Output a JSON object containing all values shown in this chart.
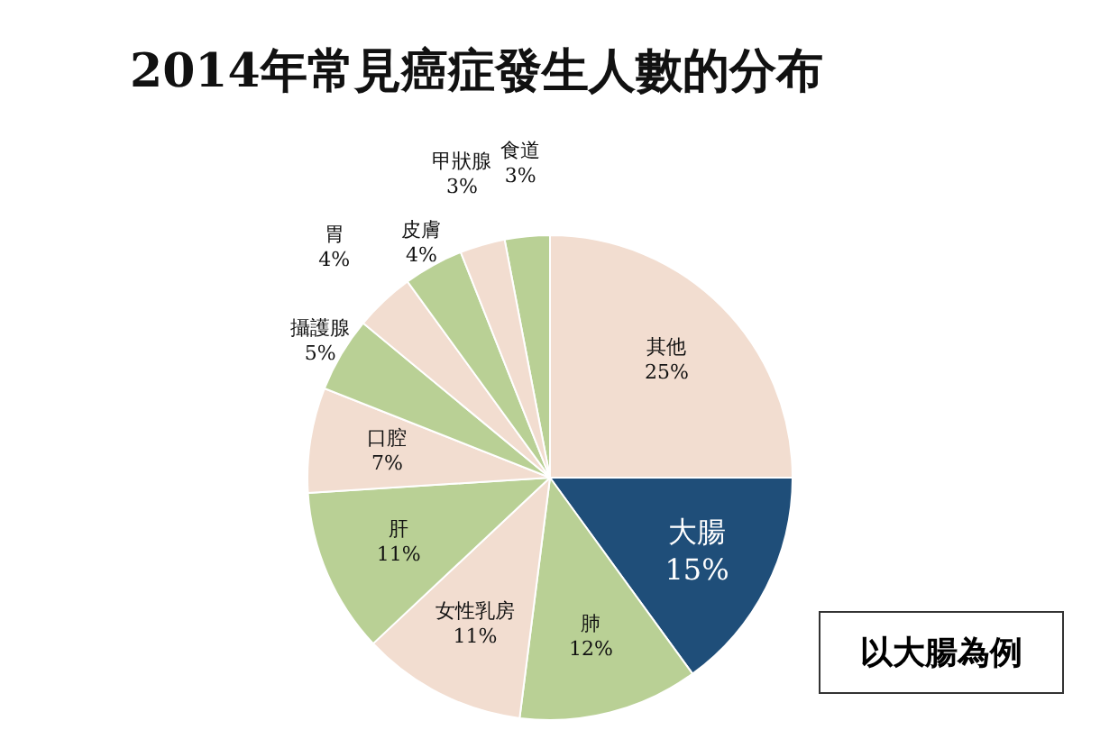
{
  "chart_data": {
    "type": "pie",
    "title": "2014年常見癌症發生人數的分布",
    "categories": [
      "食道",
      "其他",
      "大腸",
      "肺",
      "女性乳房",
      "肝",
      "口腔",
      "攝護腺",
      "胃",
      "皮膚",
      "甲狀腺"
    ],
    "values": [
      3,
      25,
      15,
      12,
      11,
      11,
      7,
      5,
      4,
      4,
      3
    ],
    "value_labels": [
      "3%",
      "25%",
      "15%",
      "12%",
      "11%",
      "11%",
      "7%",
      "5%",
      "4%",
      "4%",
      "3%"
    ],
    "colors": [
      "#b9d095",
      "#f2ddd0",
      "#1f4e79",
      "#b9d095",
      "#f2ddd0",
      "#b9d095",
      "#f2ddd0",
      "#b9d095",
      "#f2ddd0",
      "#b9d095",
      "#f2ddd0"
    ],
    "legend": false,
    "annotations": [
      "以大腸為例"
    ]
  }
}
